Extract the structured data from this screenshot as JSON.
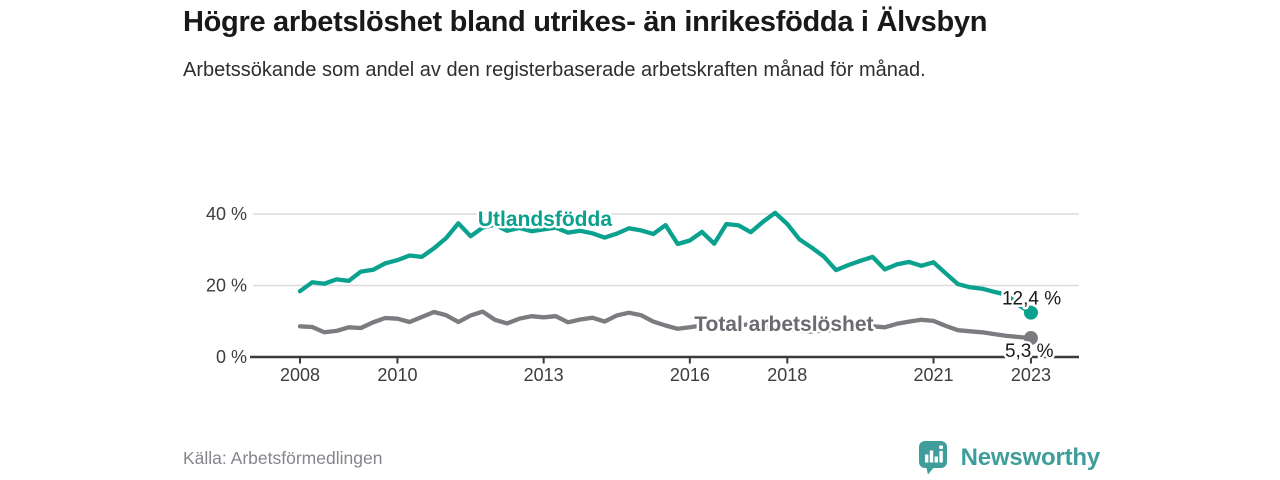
{
  "header": {
    "title": "Högre arbetslöshet bland utrikes- än inrikesfödda i Älvsbyn",
    "subtitle": "Arbetssökande som andel av den registerbaserade arbetskraften månad för månad."
  },
  "footer": {
    "source": "Källa: Arbetsförmedlingen",
    "brand": "Newsworthy"
  },
  "colors": {
    "accent_teal": "#0aa18f",
    "line_gray": "#7b7b80",
    "grid": "#dcdcdc",
    "axis": "#3a3a3a",
    "brand_teal": "#3f9e9b",
    "value_label": "#1a1a1a"
  },
  "chart_data": {
    "type": "line",
    "title": "Högre arbetslöshet bland utrikes- än inrikesfödda i Älvsbyn",
    "subtitle": "Arbetssökande som andel av den registerbaserade arbetskraften månad för månad.",
    "xlabel": "",
    "ylabel": "",
    "x_start_year": 2008,
    "points_per_year": 4,
    "xlim": [
      2007.1,
      2023.9
    ],
    "ylim": [
      0,
      44
    ],
    "grid": "horizontal",
    "legend_position": "inline-labels",
    "xticks": [
      2008,
      2010,
      2013,
      2016,
      2018,
      2021,
      2023
    ],
    "yticks": [
      {
        "value": 0,
        "label": "0 %"
      },
      {
        "value": 20,
        "label": "20 %"
      },
      {
        "value": 40,
        "label": "40 %"
      }
    ],
    "series": [
      {
        "name": "Utlandsfödda",
        "color": "#0aa18f",
        "label_color": "#0aa18f",
        "end_label": "12,4 %",
        "end_value": 12.4,
        "label_pos": {
          "t": 2011.65,
          "v": 36.6
        },
        "values": [
          18.4,
          20.9,
          20.5,
          21.7,
          21.3,
          23.9,
          24.4,
          26.2,
          27.1,
          28.4,
          28.0,
          30.4,
          33.3,
          37.4,
          33.8,
          36.2,
          37.0,
          35.3,
          36.1,
          35.2,
          35.7,
          36.2,
          34.8,
          35.3,
          34.6,
          33.4,
          34.5,
          36.0,
          35.4,
          34.4,
          36.9,
          31.6,
          32.6,
          35.0,
          31.7,
          37.2,
          36.8,
          34.9,
          37.8,
          40.3,
          37.2,
          32.9,
          30.6,
          28.1,
          24.3,
          25.7,
          26.9,
          28.0,
          24.5,
          25.9,
          26.6,
          25.5,
          26.5,
          23.4,
          20.4,
          19.5,
          19.1,
          18.2,
          17.4,
          14.5,
          12.4
        ]
      },
      {
        "name": "Total arbetslöshet",
        "color": "#7b7b80",
        "label_color": "#6a6a70",
        "end_label": "5,3 %",
        "end_value": 5.3,
        "label_pos": {
          "t": 2016.09,
          "v": 7.3
        },
        "values": [
          8.6,
          8.4,
          6.9,
          7.3,
          8.3,
          8.1,
          9.7,
          10.9,
          10.7,
          9.8,
          11.2,
          12.6,
          11.7,
          9.8,
          11.6,
          12.7,
          10.4,
          9.4,
          10.7,
          11.4,
          11.1,
          11.4,
          9.7,
          10.5,
          11.0,
          9.9,
          11.6,
          12.4,
          11.7,
          9.9,
          8.8,
          7.9,
          8.3,
          8.8,
          7.8,
          8.3,
          8.8,
          9.2,
          8.7,
          8.1,
          7.8,
          7.4,
          7.1,
          7.4,
          7.6,
          7.9,
          8.3,
          8.6,
          8.3,
          9.3,
          9.9,
          10.4,
          10.1,
          8.7,
          7.5,
          7.2,
          6.9,
          6.4,
          5.9,
          5.6,
          5.3
        ]
      }
    ]
  }
}
